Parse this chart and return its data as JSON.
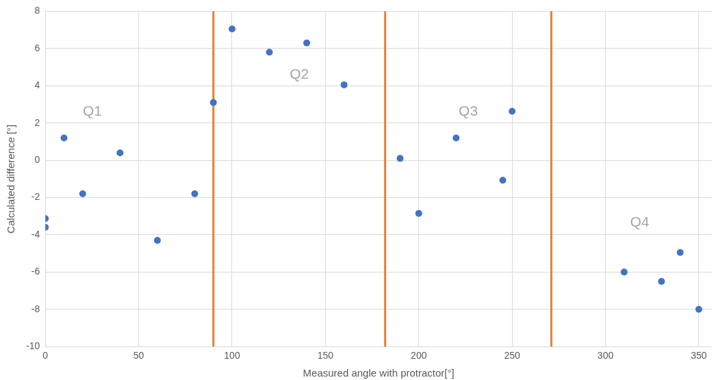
{
  "chart_data": {
    "type": "scatter",
    "xlabel": "Measured angle with protractor[°]",
    "ylabel": "Calculated difference [°]",
    "x": [
      0,
      0,
      10,
      20,
      40,
      60,
      80,
      90,
      100,
      120,
      140,
      160,
      190,
      200,
      220,
      245,
      250,
      310,
      330,
      340,
      350
    ],
    "series": [
      {
        "color": "#4472c4",
        "values": [
          -3.6,
          -3.13,
          1.2,
          -1.8,
          0.4,
          -4.3,
          -1.8,
          3.1,
          7.05,
          5.8,
          6.3,
          4.05,
          0.1,
          -2.85,
          1.2,
          -1.07,
          2.63,
          -6,
          -6.5,
          -4.95,
          -8
        ]
      }
    ],
    "xlim": [
      0,
      357
    ],
    "xticks": [
      0,
      50,
      100,
      150,
      200,
      250,
      300,
      350
    ],
    "ylim": [
      -10,
      8
    ],
    "yticks": [
      -10,
      -8,
      -6,
      -4,
      -2,
      0,
      2,
      4,
      6,
      8
    ],
    "ref_lines": [
      {
        "axis": "x",
        "value": 90,
        "color": "#ed7d31"
      },
      {
        "axis": "x",
        "value": 182,
        "color": "#ed7d31"
      },
      {
        "axis": "x",
        "value": 271,
        "color": "#ed7d31"
      }
    ],
    "annotations": [
      "Q1",
      "Q2",
      "Q3",
      "Q4"
    ],
    "grid": true,
    "marker": "circle",
    "legend": false
  }
}
